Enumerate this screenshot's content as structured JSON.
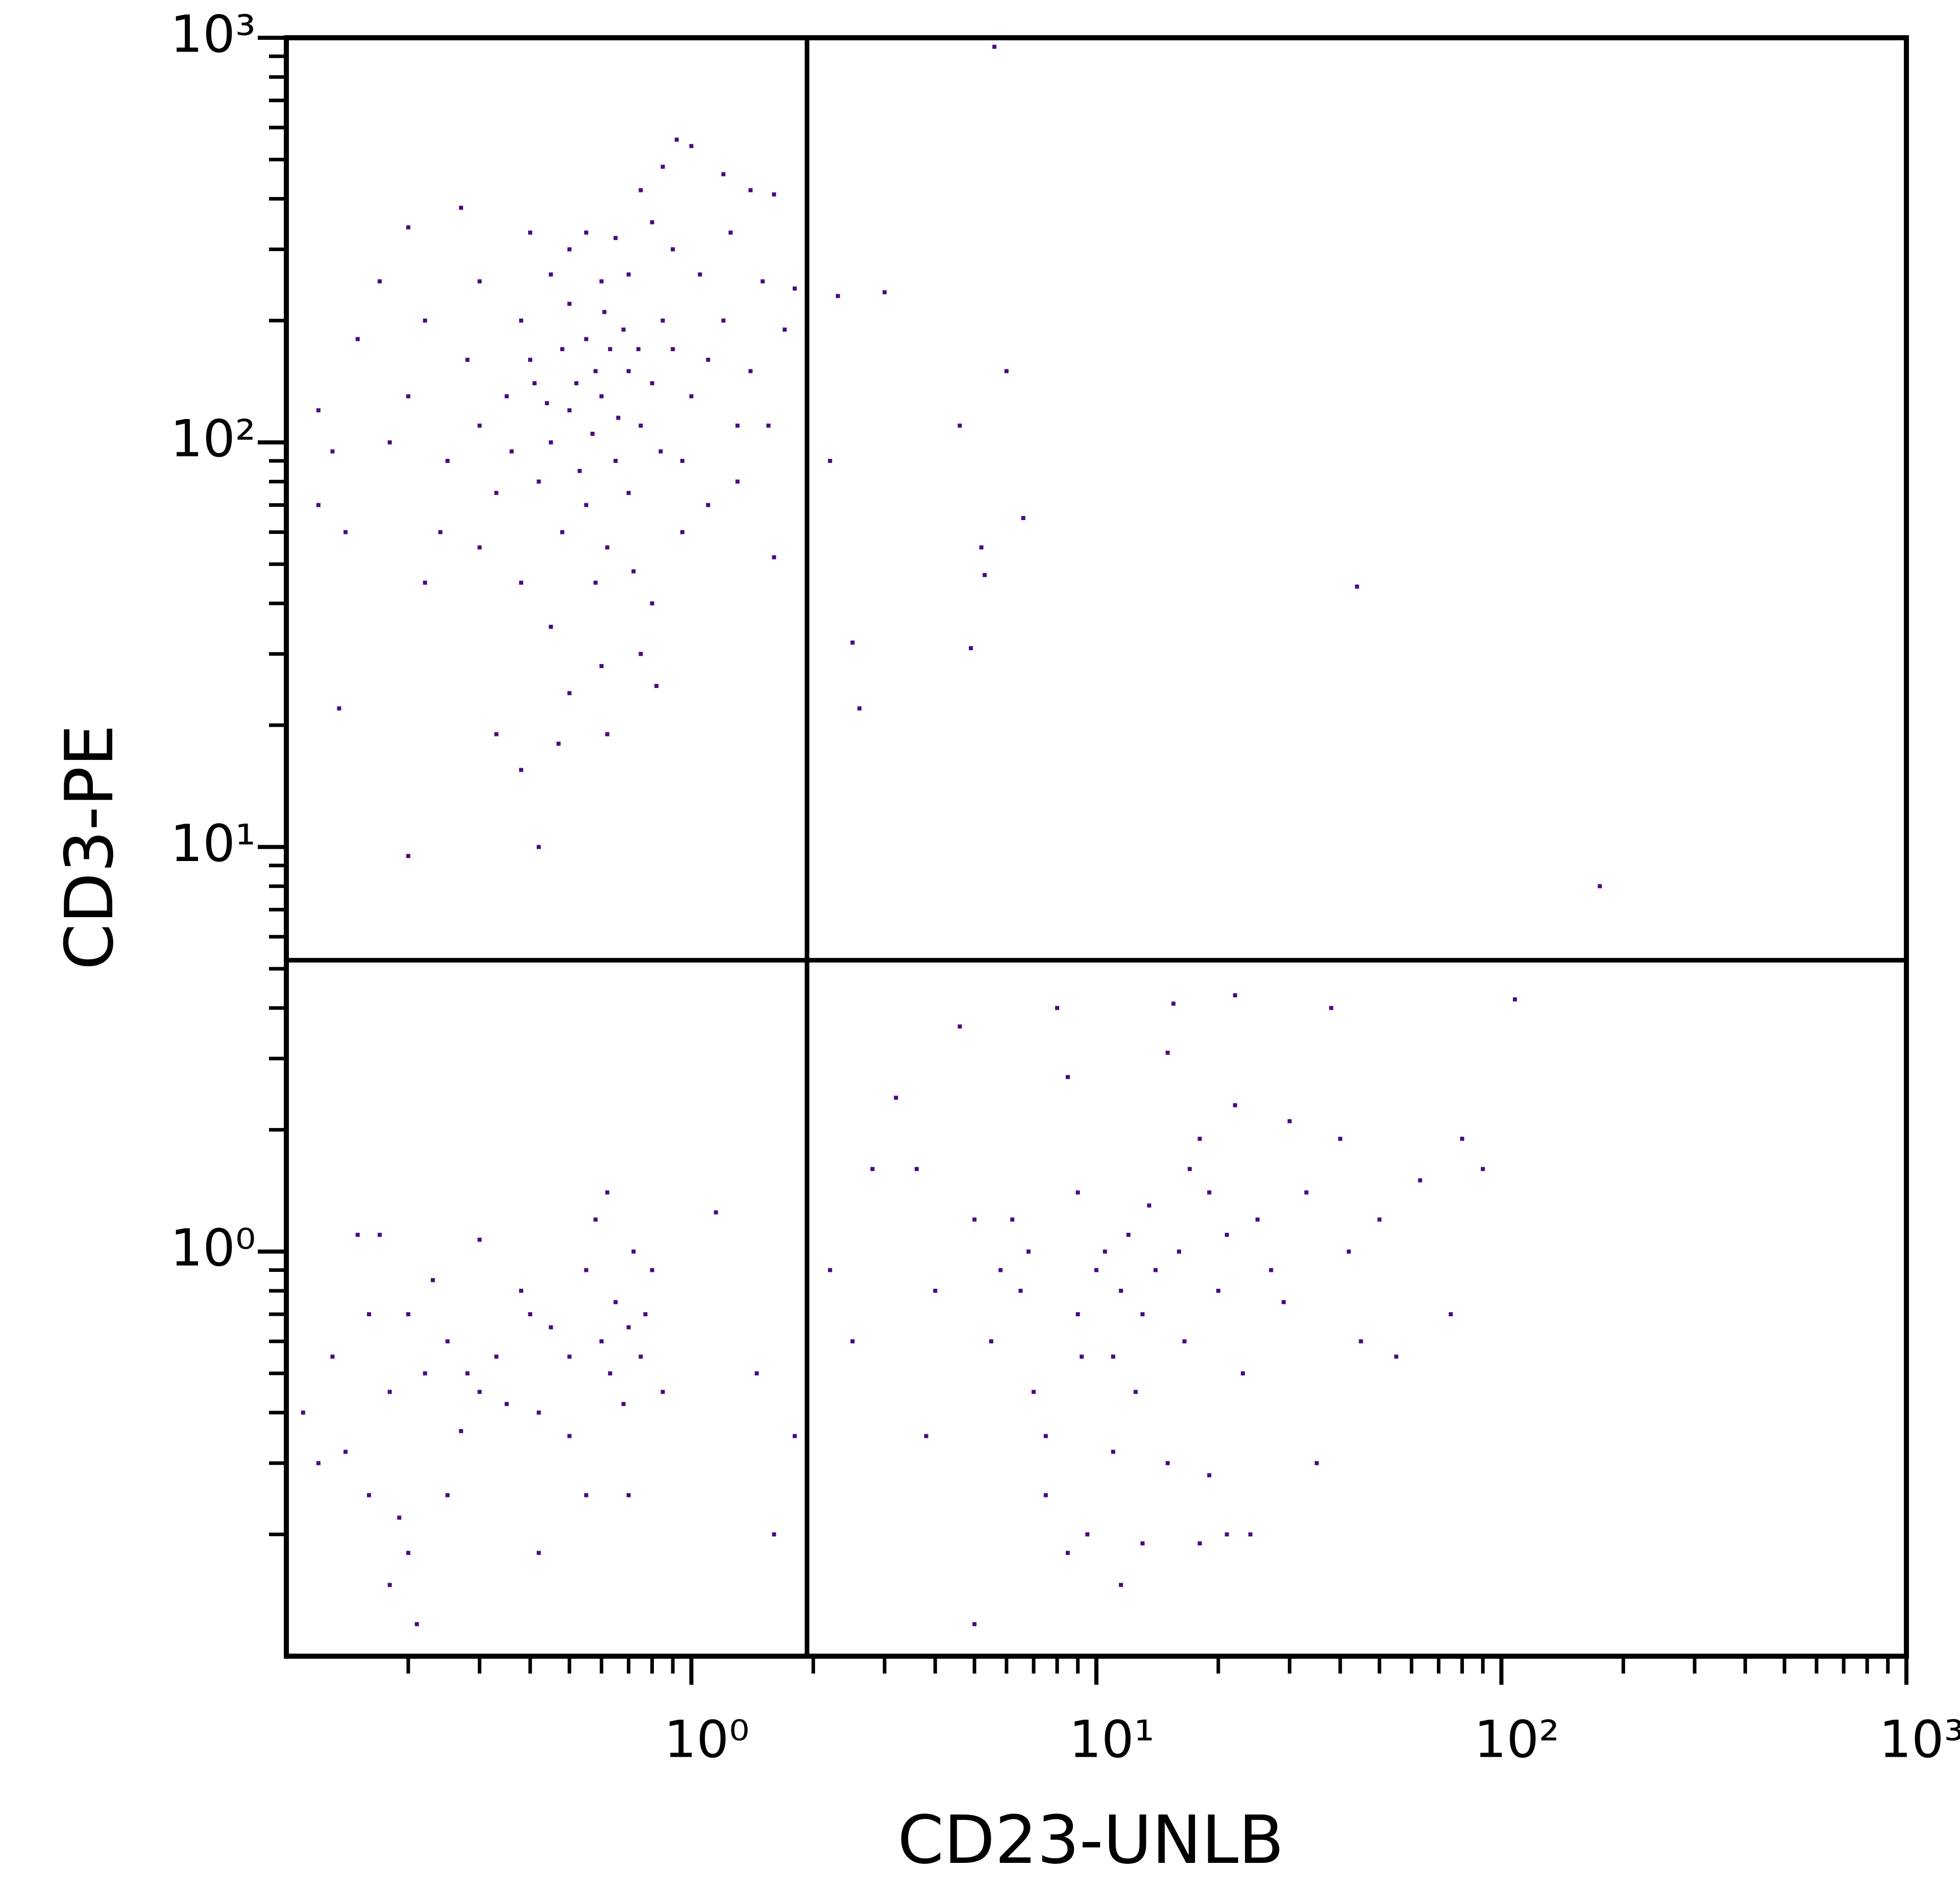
{
  "chart_data": {
    "type": "scatter",
    "x_label": "CD23-UNLB",
    "y_label": "CD3-PE",
    "log_x": true,
    "log_y": true,
    "color": "#4b0a80",
    "xlim": [
      0.1,
      1000
    ],
    "ylim": [
      0.1,
      1000
    ],
    "xticks": [
      {
        "value": 1,
        "label": "10⁰"
      },
      {
        "value": 10,
        "label": "10¹"
      },
      {
        "value": 100,
        "label": "10²"
      },
      {
        "value": 1000,
        "label": "10³"
      }
    ],
    "yticks": [
      {
        "value": 1,
        "label": "10⁰"
      },
      {
        "value": 10,
        "label": "10¹"
      },
      {
        "value": 100,
        "label": "10²"
      },
      {
        "value": 1000,
        "label": "10³"
      }
    ],
    "xminorticks": [
      0.2,
      0.3,
      0.4,
      0.5,
      0.6,
      0.7,
      0.8,
      0.9,
      2,
      3,
      4,
      5,
      6,
      7,
      8,
      9,
      20,
      30,
      40,
      50,
      60,
      70,
      80,
      90,
      200,
      300,
      400,
      500,
      600,
      700,
      800,
      900
    ],
    "yminorticks": [
      0.2,
      0.3,
      0.4,
      0.5,
      0.6,
      0.7,
      0.8,
      0.9,
      2,
      3,
      4,
      5,
      6,
      7,
      8,
      9,
      20,
      30,
      40,
      50,
      60,
      70,
      80,
      90,
      200,
      300,
      400,
      500,
      600,
      700,
      800,
      900
    ],
    "gate_x": 1.93,
    "gate_y": 5.25,
    "x": [
      0.6,
      0.5,
      0.7,
      0.45,
      0.55,
      0.65,
      0.8,
      0.4,
      0.35,
      0.9,
      0.75,
      0.5,
      0.6,
      0.85,
      0.3,
      0.42,
      0.55,
      0.7,
      1.0,
      1.1,
      1.2,
      0.95,
      0.38,
      0.28,
      0.25,
      0.48,
      0.62,
      0.72,
      0.58,
      0.33,
      1.3,
      1.4,
      0.9,
      0.8,
      1.05,
      0.65,
      0.5,
      0.45,
      0.3,
      0.22,
      0.2,
      0.18,
      0.15,
      0.13,
      0.12,
      0.17,
      0.2,
      0.27,
      0.92,
      1.0,
      1.4,
      1.6,
      1.2,
      0.85,
      0.55,
      0.4,
      0.75,
      1.25,
      1.5,
      1.7,
      1.55,
      1.3,
      1.1,
      0.95,
      0.8,
      0.75,
      0.6,
      0.5,
      0.45,
      0.38,
      0.3,
      0.24,
      0.22,
      0.14,
      0.12,
      0.135,
      0.2,
      0.33,
      0.38,
      0.42,
      0.47,
      0.62,
      0.82,
      1.6,
      1.8,
      0.68,
      0.58,
      0.52,
      0.66,
      0.44,
      0.36,
      0.7,
      0.63,
      0.48,
      0.57,
      0.74,
      0.84,
      0.41,
      0.53,
      0.61,
      5.6,
      2.3,
      3,
      6,
      4.6,
      2.2,
      6.6,
      5.2,
      5.3,
      44,
      4.9,
      2.5,
      2.6,
      175,
      0.15,
      0.17,
      0.2,
      0.22,
      0.25,
      0.18,
      0.13,
      0.11,
      0.12,
      0.14,
      0.16,
      0.19,
      0.2,
      0.18,
      0.21,
      0.25,
      0.3,
      0.33,
      0.38,
      0.4,
      0.42,
      0.45,
      0.5,
      0.55,
      0.58,
      0.6,
      0.62,
      0.65,
      0.7,
      0.72,
      0.75,
      0.8,
      0.85,
      0.55,
      0.7,
      0.42,
      0.3,
      1.15,
      1.45,
      1.6,
      1.8,
      0.27,
      0.23,
      0.5,
      0.35,
      0.63,
      0.68,
      0.77,
      0.28,
      0.16,
      2.2,
      2.5,
      2.8,
      3.2,
      3.6,
      4,
      3.8,
      4.6,
      5,
      5.5,
      5.8,
      6.2,
      6.5,
      6.8,
      7,
      7.5,
      8,
      8.5,
      9,
      9,
      10,
      10.5,
      11,
      11.5,
      12,
      12.5,
      13,
      13.5,
      14,
      15,
      15.5,
      16,
      16.5,
      17,
      18,
      19,
      20,
      21,
      22,
      22,
      23,
      24,
      25,
      27,
      29,
      30,
      33,
      35,
      38,
      40,
      42,
      45,
      50,
      55,
      63,
      75,
      80,
      90,
      108,
      8.5,
      9.5,
      11.5,
      13,
      18,
      21,
      5,
      7.5,
      11,
      15,
      19,
      9.2
    ],
    "y": [
      130,
      120,
      150,
      100,
      180,
      90,
      140,
      160,
      130,
      170,
      110,
      220,
      250,
      200,
      110,
      80,
      70,
      75,
      130,
      160,
      200,
      90,
      200,
      160,
      90,
      60,
      55,
      48,
      45,
      75,
      110,
      150,
      300,
      350,
      260,
      320,
      300,
      260,
      250,
      200,
      130,
      100,
      180,
      95,
      120,
      250,
      340,
      380,
      560,
      540,
      420,
      410,
      460,
      480,
      330,
      330,
      420,
      330,
      250,
      190,
      110,
      80,
      70,
      60,
      40,
      30,
      28,
      24,
      35,
      45,
      55,
      60,
      45,
      60,
      70,
      22,
      9.5,
      19,
      15.5,
      10,
      18,
      19,
      25,
      52,
      240,
      190,
      150,
      140,
      115,
      125,
      95,
      260,
      170,
      170,
      105,
      170,
      95,
      140,
      85,
      210,
      950,
      230,
      235,
      150,
      110,
      90,
      65,
      55,
      47,
      44,
      31,
      32,
      22,
      8,
      1.1,
      1.1,
      0.7,
      0.5,
      0.6,
      0.45,
      0.55,
      0.4,
      0.3,
      0.32,
      0.25,
      0.22,
      0.18,
      0.15,
      0.12,
      0.25,
      0.45,
      0.55,
      0.8,
      0.7,
      0.4,
      0.65,
      0.55,
      0.9,
      1.2,
      0.6,
      1.4,
      0.75,
      0.65,
      1.0,
      0.55,
      0.9,
      0.45,
      0.25,
      0.25,
      0.18,
      1.07,
      1.25,
      0.5,
      0.2,
      0.35,
      0.36,
      0.85,
      0.35,
      0.42,
      0.5,
      0.42,
      0.7,
      0.5,
      0.7,
      0.9,
      0.6,
      1.6,
      2.4,
      1.6,
      0.8,
      0.35,
      3.6,
      1.2,
      0.6,
      0.9,
      1.2,
      0.8,
      1.0,
      0.45,
      0.35,
      4.0,
      2.7,
      1.4,
      0.7,
      0.9,
      1.0,
      0.55,
      0.8,
      1.1,
      0.45,
      0.7,
      1.3,
      0.9,
      3.1,
      4.1,
      1.0,
      0.6,
      1.6,
      1.9,
      1.4,
      0.8,
      1.1,
      2.3,
      4.3,
      0.5,
      0.2,
      1.2,
      0.9,
      0.75,
      2.1,
      1.4,
      0.3,
      4.0,
      1.9,
      1.0,
      0.6,
      1.2,
      0.55,
      1.5,
      0.7,
      1.9,
      1.6,
      4.2,
      0.18,
      0.2,
      0.15,
      0.19,
      0.19,
      0.2,
      0.12,
      0.25,
      0.32,
      0.3,
      0.28,
      0.55
    ]
  }
}
